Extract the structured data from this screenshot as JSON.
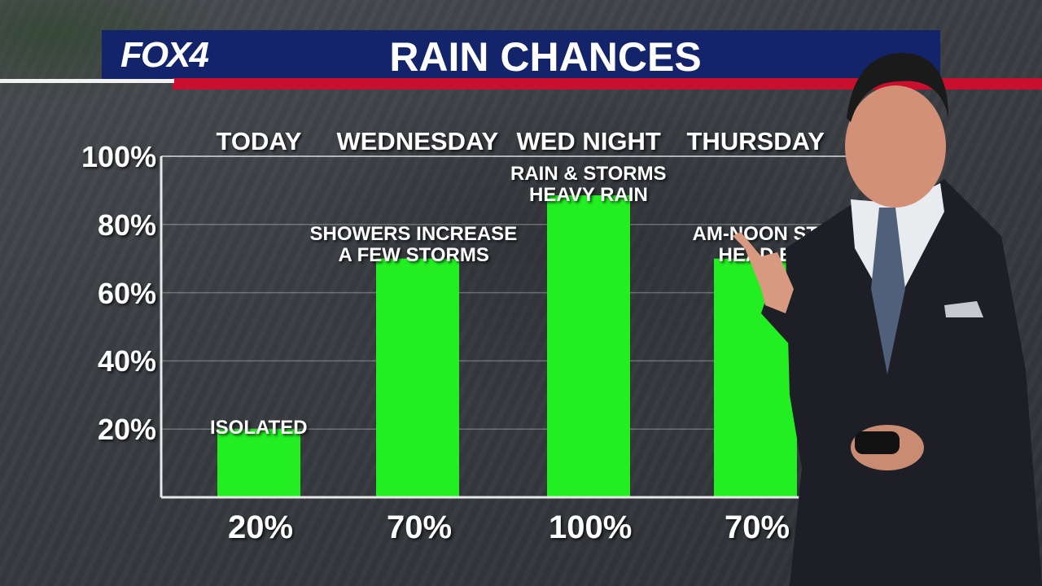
{
  "header": {
    "logo": "FOX4",
    "title": "RAIN CHANCES"
  },
  "colors": {
    "bar": "#22ee22",
    "header_blue": "#13246a",
    "header_red": "#c8102e"
  },
  "chart_data": {
    "type": "bar",
    "title": "RAIN CHANCES",
    "categories": [
      "TODAY",
      "WEDNESDAY",
      "WED NIGHT",
      "THURSDAY"
    ],
    "values": [
      20,
      70,
      100,
      70
    ],
    "value_labels": [
      "20%",
      "70%",
      "100%",
      "70%"
    ],
    "annotations": [
      [
        "ISOLATED"
      ],
      [
        "SHOWERS INCREASE",
        "A FEW STORMS"
      ],
      [
        "RAIN & STORMS",
        "HEAVY RAIN"
      ],
      [
        "AM-NOON ST",
        "HEAD E"
      ]
    ],
    "y_ticks": [
      "20%",
      "40%",
      "60%",
      "80%",
      "100%"
    ],
    "ylim": [
      0,
      100
    ],
    "grid": true
  }
}
